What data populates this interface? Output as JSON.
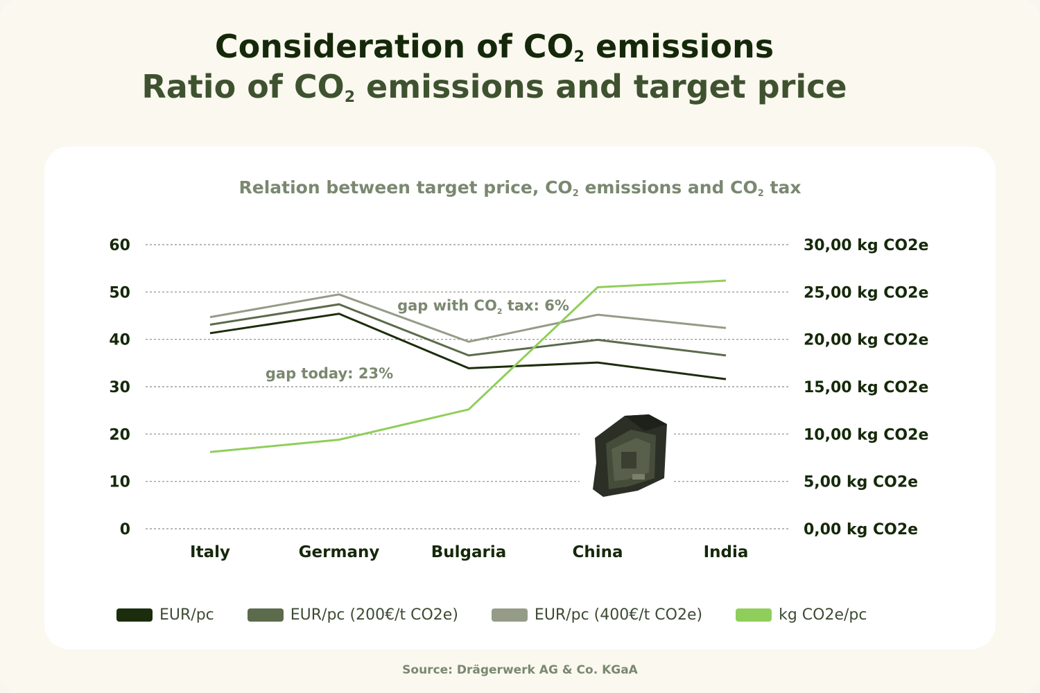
{
  "header": {
    "title_line1_pre": "Consideration of CO",
    "title_line1_sub": "2",
    "title_line1_post": " emissions",
    "title_line2_pre": "Ratio of CO",
    "title_line2_sub": "2",
    "title_line2_post": " emissions and target price"
  },
  "source": "Source: Drägerwerk AG & Co. KGaA",
  "colors": {
    "eur": "#1b2d0c",
    "eur200": "#5b6b4b",
    "eur400": "#949c88",
    "kg": "#8fce5a"
  },
  "chart_data": {
    "type": "line",
    "title_pre": "Relation between target price, CO",
    "title_sub1": "2",
    "title_mid": " emissions and CO",
    "title_sub2": "2",
    "title_post": " tax",
    "categories": [
      "Italy",
      "Germany",
      "Bulgaria",
      "China",
      "India"
    ],
    "y_left": {
      "ylim": [
        0,
        60
      ],
      "ticks": [
        "0",
        "10",
        "20",
        "30",
        "40",
        "50",
        "60"
      ]
    },
    "y_right": {
      "ylim": [
        0,
        30
      ],
      "ticks": [
        "0,00 kg CO2e",
        "5,00 kg CO2e",
        "10,00 kg CO2e",
        "15,00 kg CO2e",
        "20,00 kg CO2e",
        "25,00 kg CO2e",
        "30,00 kg CO2e"
      ]
    },
    "grid": "horizontal-dashed",
    "legend_position": "bottom",
    "series": [
      {
        "name": "EUR/pc",
        "axis": "left",
        "color_key": "eur",
        "values": [
          41.3,
          45.4,
          33.9,
          35.1,
          31.6
        ]
      },
      {
        "name": "EUR/pc (200€/t CO2e)",
        "axis": "left",
        "color_key": "eur200",
        "values": [
          43.1,
          47.4,
          36.6,
          39.9,
          36.6
        ]
      },
      {
        "name": "EUR/pc (400€/t CO2e)",
        "axis": "left",
        "color_key": "eur400",
        "values": [
          44.7,
          49.5,
          39.5,
          45.2,
          42.4
        ]
      },
      {
        "name": "kg CO2e/pc",
        "axis": "right",
        "color_key": "kg",
        "values": [
          8.1,
          9.4,
          12.6,
          25.5,
          26.2
        ]
      }
    ],
    "annotations": {
      "gap_tax_pre": "gap with CO",
      "gap_tax_sub": "2",
      "gap_tax_post": " tax: 6%",
      "gap_today": "gap today: 23%"
    }
  }
}
